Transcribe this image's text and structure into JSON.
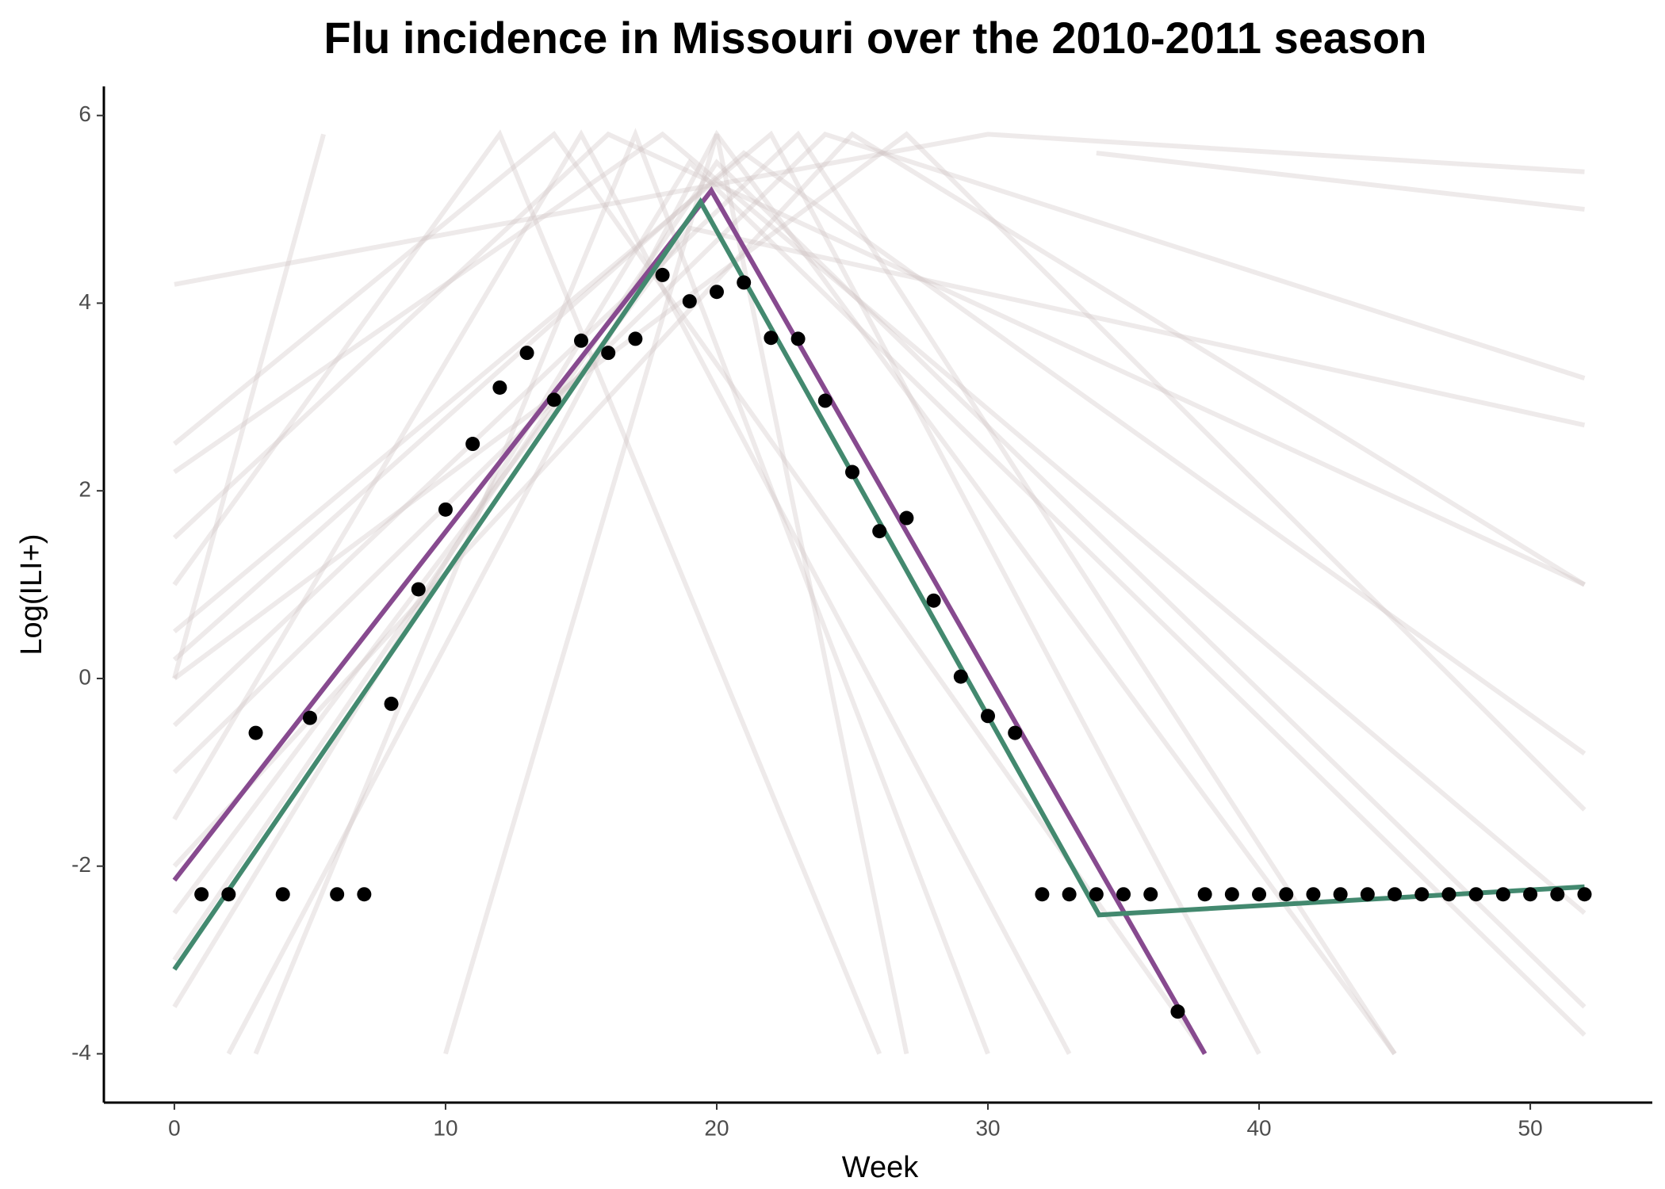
{
  "chart_data": {
    "type": "line",
    "title": "Flu incidence in Missouri over the 2010-2011 season",
    "x_label": "Week",
    "y_label": "Log(ILI+)",
    "xlim": [
      -2.6,
      54.5
    ],
    "ylim": [
      -4.52,
      6.31
    ],
    "xticks": [
      0,
      10,
      20,
      30,
      40,
      50
    ],
    "yticks": [
      -4,
      -2,
      0,
      2,
      4,
      6
    ],
    "grid": false,
    "series": [
      {
        "style": "line",
        "color": "rgba(205,195,195,0.35)",
        "x": [
          0,
          15,
          33
        ],
        "values": [
          -1.5,
          5.8,
          -4
        ]
      },
      {
        "style": "line",
        "color": "rgba(205,195,195,0.35)",
        "x": [
          0,
          22,
          40
        ],
        "values": [
          0.5,
          5.8,
          -4
        ]
      },
      {
        "style": "line",
        "color": "rgba(205,195,195,0.35)",
        "x": [
          2,
          20,
          45
        ],
        "values": [
          -4,
          5.8,
          -4
        ]
      },
      {
        "style": "line",
        "color": "rgba(205,195,195,0.35)",
        "x": [
          0,
          12,
          26
        ],
        "values": [
          1,
          5.8,
          -4
        ]
      },
      {
        "style": "line",
        "color": "rgba(205,195,195,0.35)",
        "x": [
          0,
          25,
          52
        ],
        "values": [
          -2,
          5.8,
          1
        ]
      },
      {
        "style": "line",
        "color": "rgba(205,195,195,0.35)",
        "x": [
          0,
          5.5
        ],
        "values": [
          0,
          5.8
        ]
      },
      {
        "style": "line",
        "color": "rgba(205,195,195,0.35)",
        "x": [
          0,
          30,
          52
        ],
        "values": [
          4.2,
          5.8,
          5.4
        ]
      },
      {
        "style": "line",
        "color": "rgba(205,195,195,0.35)",
        "x": [
          0,
          18,
          52
        ],
        "values": [
          2.2,
          5.8,
          -2.5
        ]
      },
      {
        "style": "line",
        "color": "rgba(205,195,195,0.35)",
        "x": [
          10,
          20,
          27
        ],
        "values": [
          -4,
          5.8,
          -4
        ]
      },
      {
        "style": "line",
        "color": "rgba(205,195,195,0.35)",
        "x": [
          0,
          20,
          52
        ],
        "values": [
          -3,
          5.5,
          -3.5
        ]
      },
      {
        "style": "line",
        "color": "rgba(205,195,195,0.35)",
        "x": [
          0,
          16,
          52
        ],
        "values": [
          1.5,
          5.8,
          1.0
        ]
      },
      {
        "style": "line",
        "color": "rgba(205,195,195,0.35)",
        "x": [
          0,
          23,
          45
        ],
        "values": [
          -0.5,
          5.8,
          -4
        ]
      },
      {
        "style": "line",
        "color": "rgba(205,195,195,0.35)",
        "x": [
          0,
          19,
          52
        ],
        "values": [
          -2.5,
          4.8,
          2.7
        ]
      },
      {
        "style": "line",
        "color": "rgba(205,195,195,0.35)",
        "x": [
          3,
          17,
          30
        ],
        "values": [
          -4,
          5.8,
          -4
        ]
      },
      {
        "style": "line",
        "color": "rgba(205,195,195,0.35)",
        "x": [
          0,
          21,
          52
        ],
        "values": [
          0.2,
          5.6,
          -0.8
        ]
      },
      {
        "style": "line",
        "color": "rgba(205,195,195,0.35)",
        "x": [
          0,
          14,
          38
        ],
        "values": [
          2.5,
          5.8,
          -4
        ]
      },
      {
        "style": "line",
        "color": "rgba(205,195,195,0.35)",
        "x": [
          0,
          24,
          52
        ],
        "values": [
          -1,
          5.8,
          3.2
        ]
      },
      {
        "style": "line",
        "color": "rgba(205,195,195,0.35)",
        "x": [
          34,
          52
        ],
        "values": [
          5.6,
          5.0
        ]
      },
      {
        "style": "line",
        "color": "rgba(205,195,195,0.35)",
        "x": [
          0,
          19,
          52
        ],
        "values": [
          -3.5,
          5.5,
          -3.8
        ]
      },
      {
        "style": "line",
        "color": "rgba(205,195,195,0.35)",
        "x": [
          0,
          27,
          52
        ],
        "values": [
          0,
          5.8,
          -1.4
        ]
      },
      {
        "style": "fit",
        "color": "#874a8f",
        "x": [
          0,
          19.8,
          38
        ],
        "values": [
          -2.15,
          5.2,
          -4.0
        ]
      },
      {
        "style": "fit",
        "color": "#43896f",
        "x": [
          0,
          19.4,
          34.1,
          52
        ],
        "values": [
          -3.1,
          5.08,
          -2.52,
          -2.22
        ]
      },
      {
        "style": "points",
        "color": "#000000",
        "x": [
          1,
          2,
          3,
          4,
          5,
          6,
          7,
          8,
          9,
          10,
          11,
          12,
          13,
          14,
          15,
          16,
          17,
          18,
          19,
          20,
          21,
          22,
          23,
          24,
          25,
          26,
          27,
          28,
          29,
          30,
          31,
          32,
          33,
          34,
          35,
          36,
          37,
          38,
          39,
          40,
          41,
          42,
          43,
          44,
          45,
          46,
          47,
          48,
          49,
          50,
          51,
          52
        ],
        "values": [
          -2.3,
          -2.3,
          -0.58,
          -2.3,
          -0.42,
          -2.3,
          -2.3,
          -0.27,
          0.95,
          1.8,
          2.5,
          3.1,
          3.47,
          2.97,
          3.6,
          3.47,
          3.62,
          4.3,
          4.02,
          4.12,
          4.22,
          3.63,
          3.62,
          2.96,
          2.2,
          1.57,
          1.71,
          0.83,
          0.02,
          -0.4,
          -0.58,
          -2.3,
          -2.3,
          -2.3,
          -2.3,
          -2.3,
          -3.55,
          -2.3,
          -2.3,
          -2.3,
          -2.3,
          -2.3,
          -2.3,
          -2.3,
          -2.3,
          -2.3,
          -2.3,
          -2.3,
          -2.3,
          -2.3,
          -2.3,
          -2.3
        ]
      }
    ]
  }
}
